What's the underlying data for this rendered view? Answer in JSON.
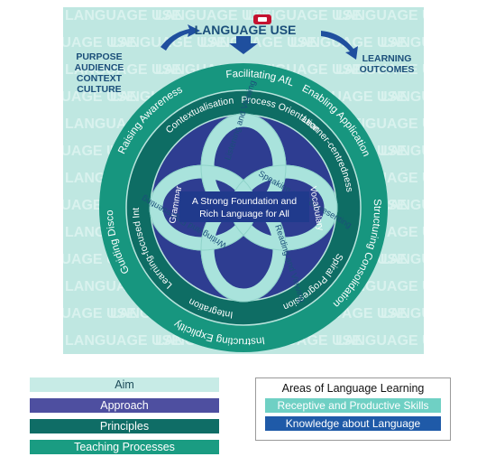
{
  "background_text": "LANGUAGE USE",
  "top": {
    "title": "LANGUAGE USE",
    "left_block": [
      "PURPOSE",
      "AUDIENCE",
      "CONTEXT",
      "CULTURE"
    ],
    "right_block": [
      "LEARNING",
      "OUTCOMES"
    ]
  },
  "outer_ring": {
    "items": [
      "Facilitating AfL",
      "Enabling Application",
      "Structuring Consolidation",
      "Instructing Explicitly",
      "Guiding Discovery",
      "Raising Awareness"
    ]
  },
  "middle_ring": {
    "items": [
      "Process Orientation",
      "Learner-centredness",
      "Spiral Progression",
      "Integration",
      "Learning-focused Interaction",
      "Contextualisation"
    ]
  },
  "knot": {
    "loops": [
      "Listening and Viewing",
      "Speaking and Representing",
      "Reading and Viewing",
      "Writing and Representing"
    ],
    "left_label": "Grammar",
    "right_label": "Vocabulary"
  },
  "center": {
    "line1": "A Strong Foundation and",
    "line2": "Rich Language for All"
  },
  "legend_left": {
    "aim": "Aim",
    "approach": "Approach",
    "principles": "Principles",
    "processes": "Teaching Processes"
  },
  "legend_right": {
    "title": "Areas of Language Learning",
    "receptive": "Receptive and Productive Skills",
    "knowledge": "Knowledge about Language"
  },
  "colors": {
    "bg": "#bfe7e1",
    "outer_ring": "#17967f",
    "middle_ring": "#0e6d64",
    "inner_disc": "#2e3d91",
    "knot": "#a9e3dc",
    "center_box": "#203a8c",
    "title_box": "#c41230"
  }
}
